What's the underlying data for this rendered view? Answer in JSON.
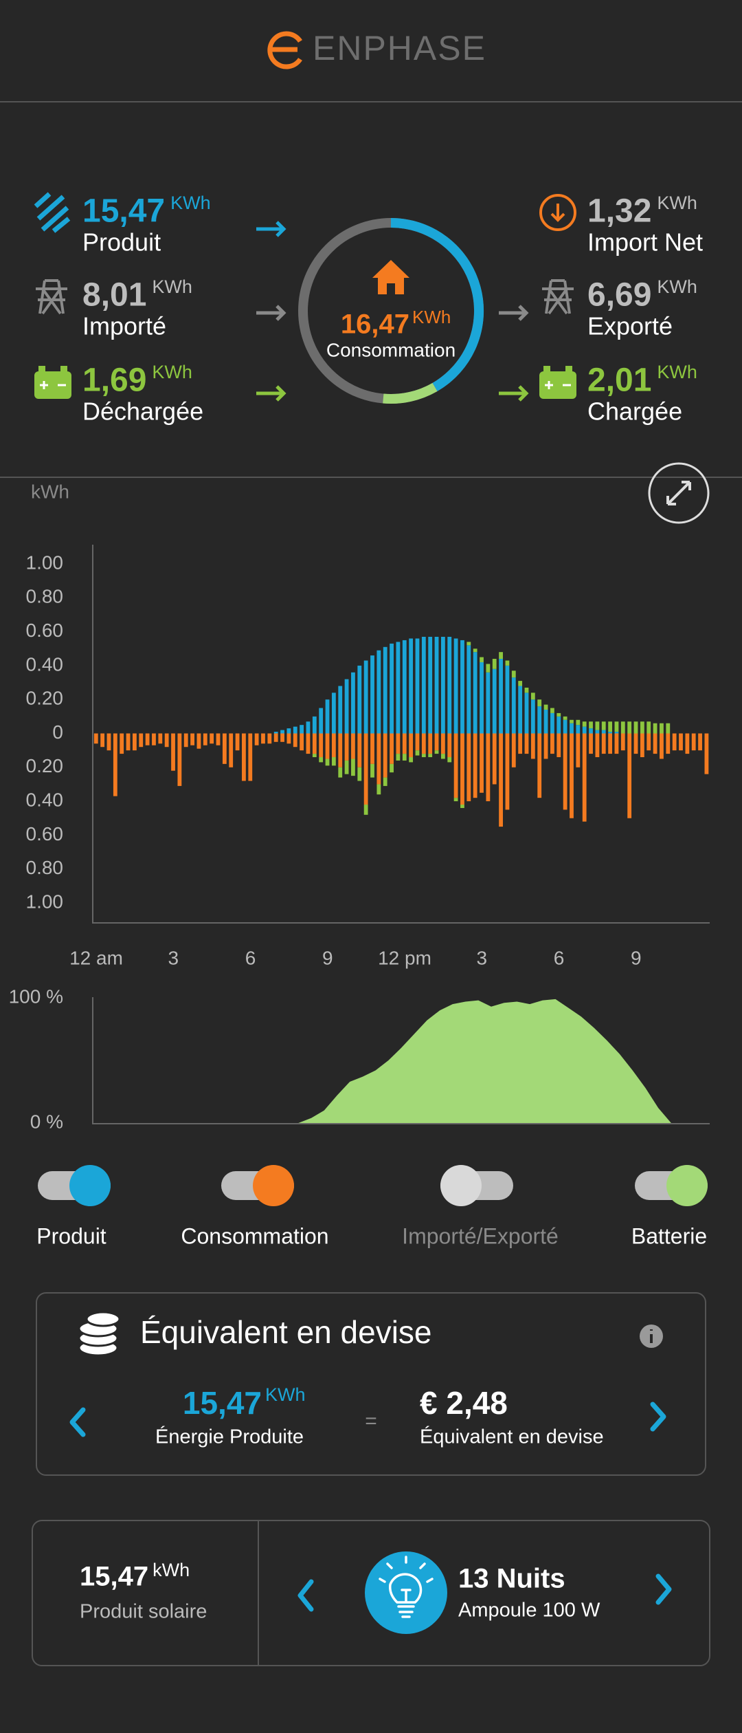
{
  "header": {
    "brand": "ENPHASE"
  },
  "summary": {
    "unit": "KWh",
    "left": [
      {
        "value": "15,47",
        "label": "Produit"
      },
      {
        "value": "8,01",
        "label": "Importé"
      },
      {
        "value": "1,69",
        "label": "Déchargée"
      }
    ],
    "center": {
      "value": "16,47",
      "label": "Consommation"
    },
    "right": [
      {
        "value": "1,32",
        "label": "Import Net"
      },
      {
        "value": "6,69",
        "label": "Exporté"
      },
      {
        "value": "2,01",
        "label": "Chargée"
      }
    ]
  },
  "chart_data": [
    {
      "type": "bar",
      "stacked": true,
      "y_label": "kWh",
      "xlim": [
        0,
        24
      ],
      "ylim": [
        -1,
        1
      ],
      "xticks": [
        {
          "value": 0,
          "label": "12 am"
        },
        3,
        6,
        9,
        {
          "value": 12,
          "label": "12 pm"
        },
        {
          "value": 15,
          "label": "3"
        },
        {
          "value": 18,
          "label": "6"
        },
        {
          "value": 21,
          "label": "9"
        }
      ],
      "yticks": [
        {
          "value": 1,
          "label": "1.00"
        },
        {
          "value": 0.8,
          "label": "0.80"
        },
        {
          "value": 0.6,
          "label": "0.60"
        },
        {
          "value": 0.4,
          "label": "0.40"
        },
        {
          "value": 0.2,
          "label": "0.20"
        },
        0,
        {
          "value": -0.2,
          "label": "0.20"
        },
        {
          "value": -0.4,
          "label": "0.40"
        },
        {
          "value": -0.6,
          "label": "0.60"
        },
        {
          "value": -0.8,
          "label": "0.80"
        },
        {
          "value": -1,
          "label": "1.00"
        }
      ],
      "x": [
        0,
        0.25,
        0.5,
        0.75,
        1,
        1.25,
        1.5,
        1.75,
        2,
        2.25,
        2.5,
        2.75,
        3,
        3.25,
        3.5,
        3.75,
        4,
        4.25,
        4.5,
        4.75,
        5,
        5.25,
        5.5,
        5.75,
        6,
        6.25,
        6.5,
        6.75,
        7,
        7.25,
        7.5,
        7.75,
        8,
        8.25,
        8.5,
        8.75,
        9,
        9.25,
        9.5,
        9.75,
        10,
        10.25,
        10.5,
        10.75,
        11,
        11.25,
        11.5,
        11.75,
        12,
        12.25,
        12.5,
        12.75,
        13,
        13.25,
        13.5,
        13.75,
        14,
        14.25,
        14.5,
        14.75,
        15,
        15.25,
        15.5,
        15.75,
        16,
        16.25,
        16.5,
        16.75,
        17,
        17.25,
        17.5,
        17.75,
        18,
        18.25,
        18.5,
        18.75,
        19,
        19.25,
        19.5,
        19.75,
        20,
        20.25,
        20.5,
        20.75,
        21,
        21.25,
        21.5,
        21.75,
        22,
        22.25,
        22.5,
        22.75,
        23,
        23.25,
        23.5,
        23.75
      ],
      "series": [
        {
          "name": "Produit",
          "color": "#1ba6d8",
          "values": [
            0,
            0,
            0,
            0,
            0,
            0,
            0,
            0,
            0,
            0,
            0,
            0,
            0,
            0,
            0,
            0,
            0,
            0,
            0,
            0,
            0,
            0,
            0,
            0,
            0,
            0,
            0,
            0,
            0.01,
            0.02,
            0.03,
            0.04,
            0.05,
            0.07,
            0.1,
            0.15,
            0.2,
            0.24,
            0.28,
            0.32,
            0.36,
            0.4,
            0.43,
            0.46,
            0.49,
            0.51,
            0.53,
            0.54,
            0.55,
            0.56,
            0.56,
            0.57,
            0.57,
            0.57,
            0.57,
            0.57,
            0.56,
            0.55,
            0.52,
            0.48,
            0.42,
            0.36,
            0.38,
            0.44,
            0.4,
            0.33,
            0.28,
            0.24,
            0.2,
            0.16,
            0.14,
            0.12,
            0.1,
            0.08,
            0.06,
            0.05,
            0.04,
            0.03,
            0.02,
            0.02,
            0.01,
            0.01,
            0,
            0,
            0,
            0,
            0,
            0,
            0,
            0,
            0,
            0,
            0,
            0,
            0,
            0
          ]
        },
        {
          "name": "Consommation",
          "color": "#f47b20",
          "values": [
            -0.06,
            -0.08,
            -0.1,
            -0.37,
            -0.12,
            -0.1,
            -0.1,
            -0.08,
            -0.07,
            -0.07,
            -0.06,
            -0.08,
            -0.22,
            -0.31,
            -0.08,
            -0.07,
            -0.09,
            -0.07,
            -0.06,
            -0.07,
            -0.18,
            -0.2,
            -0.1,
            -0.28,
            -0.28,
            -0.07,
            -0.06,
            -0.06,
            -0.05,
            -0.05,
            -0.06,
            -0.08,
            -0.1,
            -0.12,
            -0.12,
            -0.14,
            -0.15,
            -0.14,
            -0.2,
            -0.16,
            -0.15,
            -0.2,
            -0.42,
            -0.18,
            -0.3,
            -0.26,
            -0.18,
            -0.12,
            -0.12,
            -0.14,
            -0.1,
            -0.12,
            -0.12,
            -0.1,
            -0.12,
            -0.14,
            -0.38,
            -0.42,
            -0.4,
            -0.38,
            -0.35,
            -0.4,
            -0.3,
            -0.55,
            -0.45,
            -0.2,
            -0.12,
            -0.12,
            -0.15,
            -0.38,
            -0.15,
            -0.12,
            -0.14,
            -0.45,
            -0.5,
            -0.2,
            -0.52,
            -0.12,
            -0.14,
            -0.12,
            -0.12,
            -0.12,
            -0.1,
            -0.5,
            -0.12,
            -0.14,
            -0.1,
            -0.12,
            -0.15,
            -0.12,
            -0.1,
            -0.1,
            -0.12,
            -0.1,
            -0.1,
            -0.24
          ]
        },
        {
          "name": "Batterie",
          "color": "#8dc63f",
          "values": [
            0,
            0,
            0,
            0,
            0,
            0,
            0,
            0,
            0,
            0,
            0,
            0,
            0,
            0,
            0,
            0,
            0,
            0,
            0,
            0,
            0,
            0,
            0,
            0,
            0,
            0,
            0,
            0,
            0,
            0,
            0,
            0,
            0,
            0,
            -0.02,
            -0.03,
            -0.04,
            -0.05,
            -0.06,
            -0.08,
            -0.1,
            -0.08,
            -0.06,
            -0.08,
            -0.06,
            -0.05,
            -0.05,
            -0.04,
            -0.04,
            -0.03,
            -0.03,
            -0.02,
            -0.02,
            -0.02,
            -0.03,
            -0.03,
            -0.02,
            -0.02,
            0.02,
            0.02,
            0.03,
            0.05,
            0.06,
            0.04,
            0.03,
            0.04,
            0.03,
            0.03,
            0.04,
            0.04,
            0.03,
            0.03,
            0.02,
            0.02,
            0.02,
            0.03,
            0.03,
            0.04,
            0.05,
            0.05,
            0.06,
            0.06,
            0.07,
            0.07,
            0.07,
            0.07,
            0.07,
            0.06,
            0.06,
            0.06,
            0,
            0,
            0,
            0,
            0,
            0
          ]
        }
      ],
      "inactive_legend": [
        "Importé/Exporté"
      ]
    },
    {
      "type": "area",
      "color": "#a3d977",
      "xlim": [
        0,
        24
      ],
      "ylim": [
        0,
        100
      ],
      "yticks": [
        {
          "value": 100,
          "label": "100 %"
        },
        {
          "value": 0,
          "label": "0 %"
        }
      ],
      "x": [
        0,
        0.5,
        1,
        1.5,
        2,
        2.5,
        3,
        3.5,
        4,
        4.5,
        5,
        5.5,
        6,
        6.5,
        7,
        7.5,
        8,
        8.5,
        9,
        9.5,
        10,
        10.5,
        11,
        11.5,
        12,
        12.5,
        13,
        13.5,
        14,
        14.5,
        15,
        15.5,
        16,
        16.5,
        17,
        17.5,
        18,
        18.5,
        19,
        19.5,
        20,
        20.5,
        21,
        21.5,
        22,
        22.5,
        23,
        23.5,
        24
      ],
      "values": [
        0,
        0,
        0,
        0,
        0,
        0,
        0,
        0,
        0,
        0,
        0,
        0,
        0,
        0,
        0,
        0,
        0,
        4,
        10,
        22,
        33,
        37,
        42,
        50,
        60,
        71,
        82,
        90,
        95,
        97,
        98,
        93,
        96,
        97,
        95,
        98,
        99,
        92,
        85,
        76,
        66,
        55,
        42,
        28,
        12,
        0,
        0,
        0,
        0
      ]
    }
  ],
  "currency": {
    "title": "Équivalent en devise",
    "energy_value": "15,47",
    "energy_unit": "KWh",
    "energy_label": "Énergie Produite",
    "equals": "=",
    "amount": "€ 2,48",
    "amount_label": "Équivalent en devise"
  },
  "equivalence": {
    "solar_value": "15,47",
    "solar_unit": "kWh",
    "solar_label": "Produit solaire",
    "item_value": "13 Nuits",
    "item_label": "Ampoule 100 W"
  }
}
